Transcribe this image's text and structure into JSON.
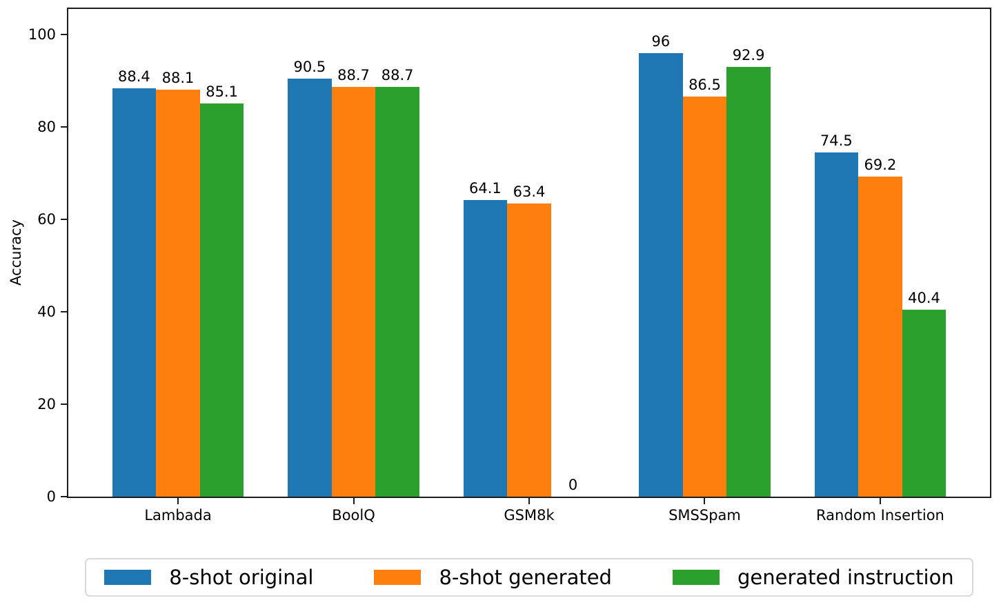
{
  "chart_data": {
    "type": "bar",
    "title": "",
    "xlabel": "",
    "ylabel": "Accuracy",
    "categories": [
      "Lambada",
      "BoolQ",
      "GSM8k",
      "SMSSpam",
      "Random Insertion"
    ],
    "series": [
      {
        "name": "8-shot original",
        "color": "#1f77b4",
        "values": [
          88.4,
          90.5,
          64.1,
          96,
          74.5
        ]
      },
      {
        "name": "8-shot generated",
        "color": "#ff7f0e",
        "values": [
          88.1,
          88.7,
          63.4,
          86.5,
          69.2
        ]
      },
      {
        "name": "generated instruction",
        "color": "#2ca02c",
        "values": [
          85.1,
          88.7,
          0,
          92.9,
          40.4
        ]
      }
    ],
    "yticks": [
      0,
      20,
      40,
      60,
      80,
      100
    ],
    "ylim": [
      0,
      105.5
    ],
    "bar_labels": true,
    "grid": false,
    "legend_position": "bottom-center",
    "spine_color": "#1c1c1c",
    "legend_border_color": "#d9d9d9"
  }
}
